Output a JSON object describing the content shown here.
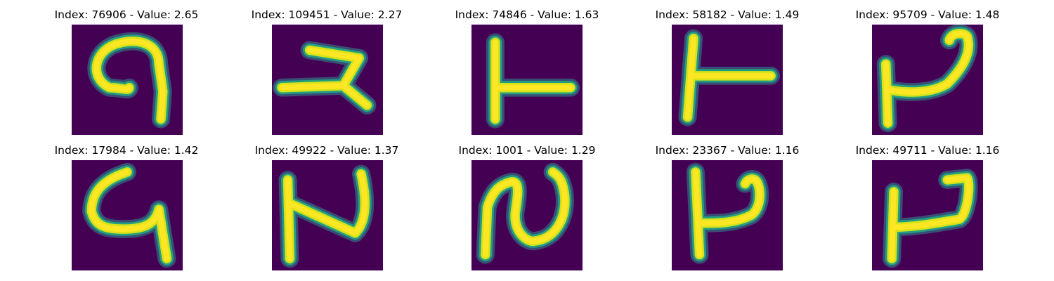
{
  "colors": {
    "background": "#440154",
    "glow_outer": "#2f8f8f",
    "glow_mid": "#21a685",
    "core": "#d7e219",
    "core_hot": "#fde725"
  },
  "panels": [
    {
      "title": "Index: 76906 - Value: 2.65",
      "glyph": "g1"
    },
    {
      "title": "Index: 109451 - Value: 2.27",
      "glyph": "g2"
    },
    {
      "title": "Index: 74846 - Value: 1.63",
      "glyph": "g3"
    },
    {
      "title": "Index: 58182 - Value: 1.49",
      "glyph": "g4"
    },
    {
      "title": "Index: 95709 - Value: 1.48",
      "glyph": "g5"
    },
    {
      "title": "Index: 17984 - Value: 1.42",
      "glyph": "g6"
    },
    {
      "title": "Index: 49922 - Value: 1.37",
      "glyph": "g7"
    },
    {
      "title": "Index: 1001 - Value: 1.29",
      "glyph": "g8"
    },
    {
      "title": "Index: 23367 - Value: 1.16",
      "glyph": "g9"
    },
    {
      "title": "Index: 49711 - Value: 1.16",
      "glyph": "g10"
    }
  ]
}
